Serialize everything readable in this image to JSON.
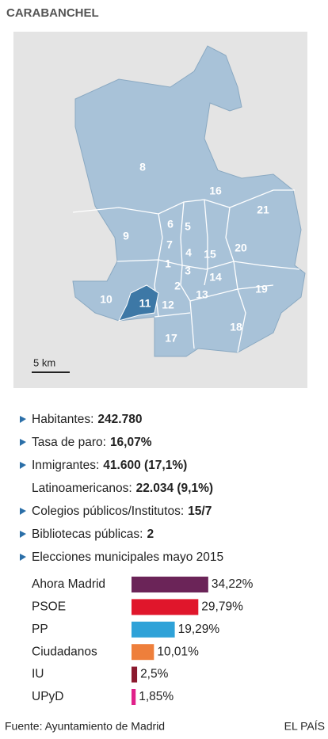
{
  "title": "CARABANCHEL",
  "map": {
    "districts": [
      "8",
      "16",
      "21",
      "6",
      "5",
      "9",
      "7",
      "4",
      "15",
      "20",
      "1",
      "3",
      "14",
      "2",
      "19",
      "13",
      "10",
      "11",
      "12",
      "18",
      "17"
    ],
    "scale_label": "5 km"
  },
  "stats": [
    {
      "label": "Habitantes:",
      "value": "242.780"
    },
    {
      "label": "Tasa de paro:",
      "value": "16,07%"
    },
    {
      "label": "Inmigrantes:",
      "value": "41.600 (17,1%)",
      "sub": {
        "label": "Latinoamericanos:",
        "value": "22.034 (9,1%)"
      }
    },
    {
      "label": "Colegios públicos/Institutos:",
      "value": "15/7"
    },
    {
      "label": "Bibliotecas públicas:",
      "value": "2"
    }
  ],
  "elections": {
    "title": "Elecciones municipales mayo 2015",
    "parties": [
      {
        "name": "Ahora Madrid",
        "color": "#6b2458",
        "value": 34.22,
        "value_label": "34,22%"
      },
      {
        "name": "PSOE",
        "color": "#e0162b",
        "value": 29.79,
        "value_label": "29,79%"
      },
      {
        "name": "PP",
        "color": "#2fa2d8",
        "value": 19.29,
        "value_label": "19,29%"
      },
      {
        "name": "Ciudadanos",
        "color": "#ee7f3b",
        "value": 10.01,
        "value_label": "10,01%"
      },
      {
        "name": "IU",
        "color": "#8b1a2e",
        "value": 2.5,
        "value_label": "2,5%"
      },
      {
        "name": "UPyD",
        "color": "#e0218a",
        "value": 1.85,
        "value_label": "1,85%"
      }
    ]
  },
  "footer": {
    "source": "Fuente: Ayuntamiento de Madrid",
    "brand": "EL PAÍS"
  }
}
